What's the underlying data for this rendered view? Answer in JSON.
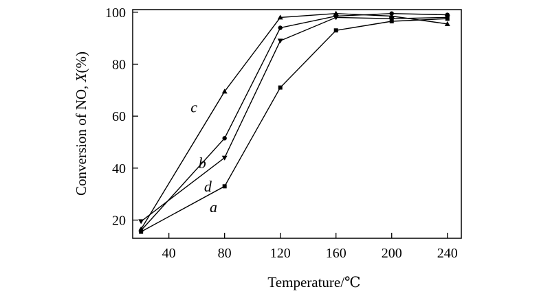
{
  "chart_data": {
    "type": "line",
    "title": "",
    "xlabel": "Temperature/℃",
    "ylabel_prefix": "Conversion of NO, ",
    "ylabel_var": "X",
    "ylabel_suffix": "(%)",
    "xlim": [
      14,
      250
    ],
    "ylim": [
      13,
      101
    ],
    "xticks": [
      40,
      80,
      120,
      160,
      200,
      240
    ],
    "yticks": [
      20,
      40,
      60,
      80,
      100
    ],
    "grid": false,
    "legend": "none",
    "series": [
      {
        "name": "a",
        "marker": "square",
        "x": [
          20,
          80,
          120,
          160,
          200,
          240
        ],
        "y": [
          15.5,
          33,
          71,
          93,
          96.5,
          97.5
        ]
      },
      {
        "name": "b",
        "marker": "circle",
        "x": [
          20,
          80,
          120,
          160,
          200,
          240
        ],
        "y": [
          16,
          51.5,
          94,
          98.5,
          99.5,
          99
        ]
      },
      {
        "name": "c",
        "marker": "triangle-up",
        "x": [
          20,
          80,
          120,
          160,
          200,
          240
        ],
        "y": [
          16.5,
          69.5,
          98,
          99.5,
          98.5,
          95.5
        ]
      },
      {
        "name": "d",
        "marker": "triangle-down",
        "x": [
          20,
          80,
          120,
          160,
          200,
          240
        ],
        "y": [
          19.5,
          44,
          89,
          98,
          97.5,
          98
        ]
      }
    ],
    "annotations": [
      {
        "text": "a",
        "x": 72,
        "y": 23
      },
      {
        "text": "b",
        "x": 64,
        "y": 40
      },
      {
        "text": "c",
        "x": 58,
        "y": 61.5
      },
      {
        "text": "d",
        "x": 68,
        "y": 31
      }
    ]
  }
}
